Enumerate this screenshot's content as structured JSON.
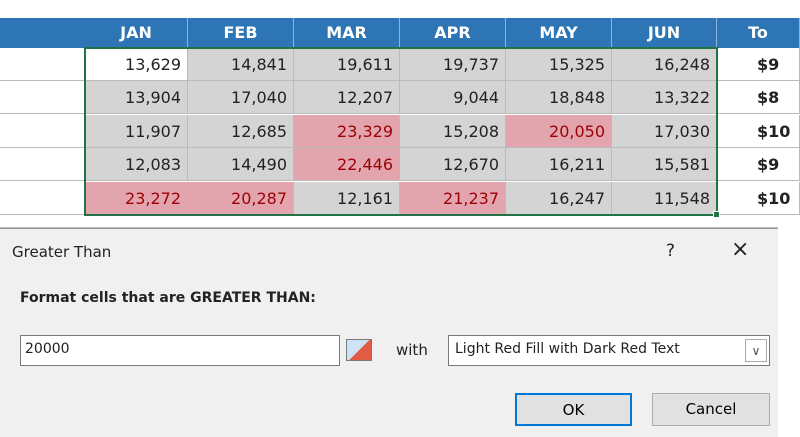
{
  "sheet": {
    "header": [
      "JAN",
      "FEB",
      "MAR",
      "APR",
      "MAY",
      "JUN",
      "To"
    ],
    "rows": [
      [
        "13,629",
        "14,841",
        "19,611",
        "19,737",
        "15,325",
        "16,248",
        "$9"
      ],
      [
        "13,904",
        "17,040",
        "12,207",
        "9,044",
        "18,848",
        "13,322",
        "$8"
      ],
      [
        "11,907",
        "12,685",
        "23,329",
        "15,208",
        "20,050",
        "17,030",
        "$10"
      ],
      [
        "12,083",
        "14,490",
        "22,446",
        "12,670",
        "16,211",
        "15,581",
        "$9"
      ],
      [
        "23,272",
        "20,287",
        "12,161",
        "21,237",
        "16,247",
        "11,548",
        "$10"
      ]
    ]
  },
  "dialog": {
    "title": "Greater Than",
    "help": "?",
    "close": "×",
    "label": "Format cells that are GREATER THAN:",
    "input": "20000",
    "with": "with",
    "format": "Light Red Fill with Dark Red Text",
    "ok": "OK",
    "cancel": "Cancel"
  }
}
